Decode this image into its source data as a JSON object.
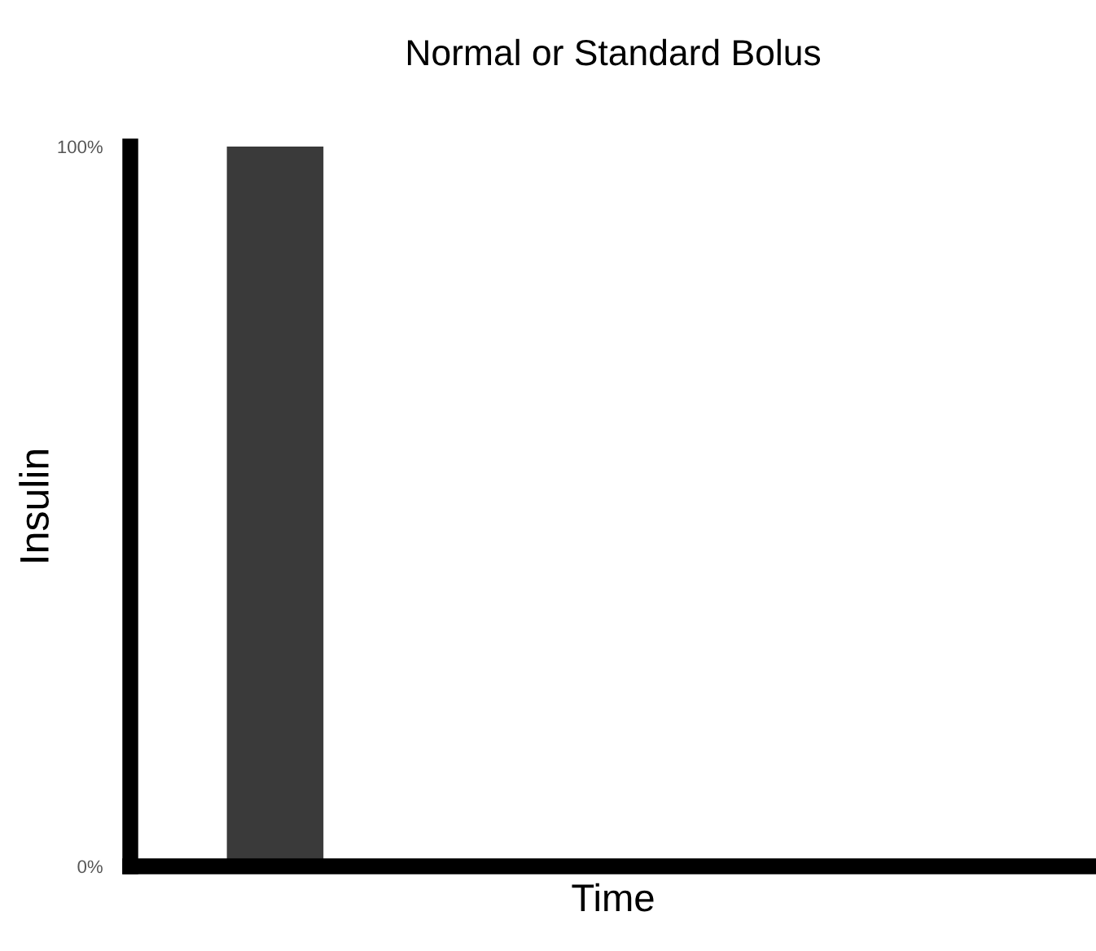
{
  "chart_data": {
    "type": "bar",
    "title": "Normal or Standard Bolus",
    "xlabel": "Time",
    "ylabel": "Insulin",
    "categories": [
      null,
      null,
      null,
      null,
      null,
      null,
      null,
      null,
      null,
      null
    ],
    "values": [
      null,
      100,
      null,
      null,
      null,
      null,
      null,
      null,
      null,
      null
    ],
    "color": "#3a3a3a",
    "ylim": [
      0,
      100
    ],
    "yticks": [
      {
        "value": 0,
        "label": "0%"
      },
      {
        "value": 100,
        "label": "100%"
      }
    ],
    "grid": false,
    "legend": false
  }
}
